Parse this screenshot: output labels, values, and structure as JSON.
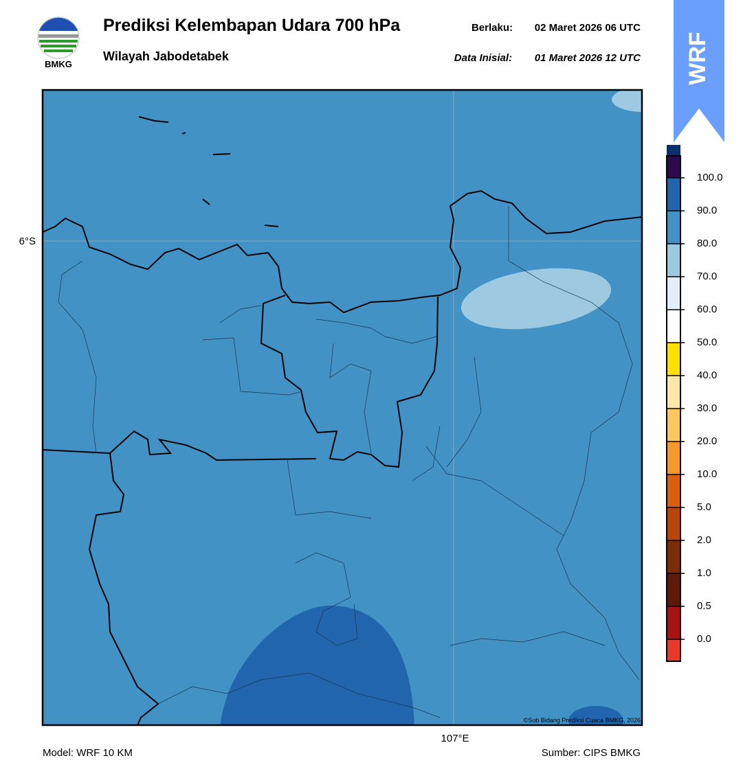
{
  "header": {
    "title": "Prediksi Kelembapan Udara 700 hPa",
    "subtitle": "Wilayah Jabodetabek",
    "valid_label": "Berlaku:",
    "valid": "02 Maret 2026 06 UTC",
    "init_label": "Data Inisial:",
    "init": "01 Maret 2026 12 UTC",
    "logo_text": "BMKG",
    "badge": "WRF"
  },
  "map": {
    "lat_label": "6°S",
    "lon_label": "107°E",
    "credit": "©Sub Bidang Prediksi Cuaca BMKG, 2026"
  },
  "colorbar": {
    "ticks": [
      {
        "value": 0,
        "label": "0.0"
      },
      {
        "value": 0.5,
        "label": "0.5"
      },
      {
        "value": 1,
        "label": "1.0"
      },
      {
        "value": 2,
        "label": "2.0"
      },
      {
        "value": 5,
        "label": "5.0"
      },
      {
        "value": 10,
        "label": "10.0"
      },
      {
        "value": 20,
        "label": "20.0"
      },
      {
        "value": 30,
        "label": "30.0"
      },
      {
        "value": 40,
        "label": "40.0"
      },
      {
        "value": 50,
        "label": "50.0"
      },
      {
        "value": 60,
        "label": "60.0"
      },
      {
        "value": 70,
        "label": "70.0"
      },
      {
        "value": 80,
        "label": "80.0"
      },
      {
        "value": 90,
        "label": "90.0"
      },
      {
        "value": 100,
        "label": "100.0"
      }
    ],
    "colors": [
      "#a81414",
      "#5c1a0a",
      "#7d2c08",
      "#b8460a",
      "#d9600e",
      "#f59a2a",
      "#fcc85e",
      "#fde6a8",
      "#ffe000",
      "#ffffff",
      "#e4eef8",
      "#9ecae1",
      "#4292c6",
      "#2166ac",
      "#08306b"
    ],
    "under_color": "#e8392b",
    "over_color": "#2d0a4e"
  },
  "footer": {
    "model": "Model: WRF 10 KM",
    "source": "Sumber: CIPS BMKG"
  }
}
